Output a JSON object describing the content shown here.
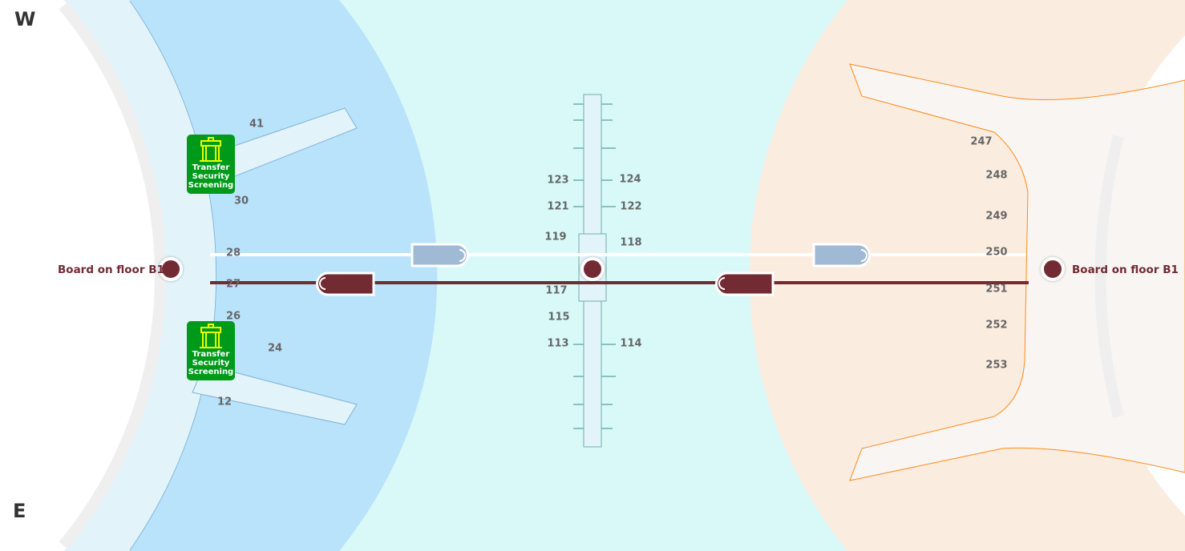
{
  "compass": {
    "north": "W",
    "south": "E"
  },
  "colors": {
    "west_zone": "#b9e2fb",
    "center_zone": "#d9f9f9",
    "east_zone": "#fbece0",
    "train_dark": "#722a33",
    "train_light": "#a0bad5",
    "security": "#009a1b",
    "security_icon": "#e6ff00"
  },
  "stations": {
    "west": "Board on floor B1",
    "east": "Board on floor B1"
  },
  "security": [
    {
      "label": "Transfer Security Screening",
      "icon": "security-gate-icon"
    },
    {
      "label": "Transfer Security Screening",
      "icon": "security-gate-icon"
    }
  ],
  "gates": {
    "west": [
      "41",
      "30",
      "28",
      "27",
      "26",
      "24",
      "12"
    ],
    "center": [
      "123",
      "124",
      "121",
      "122",
      "119",
      "118",
      "117",
      "115",
      "113",
      "114"
    ],
    "east": [
      "247",
      "248",
      "249",
      "250",
      "251",
      "252",
      "253"
    ]
  }
}
